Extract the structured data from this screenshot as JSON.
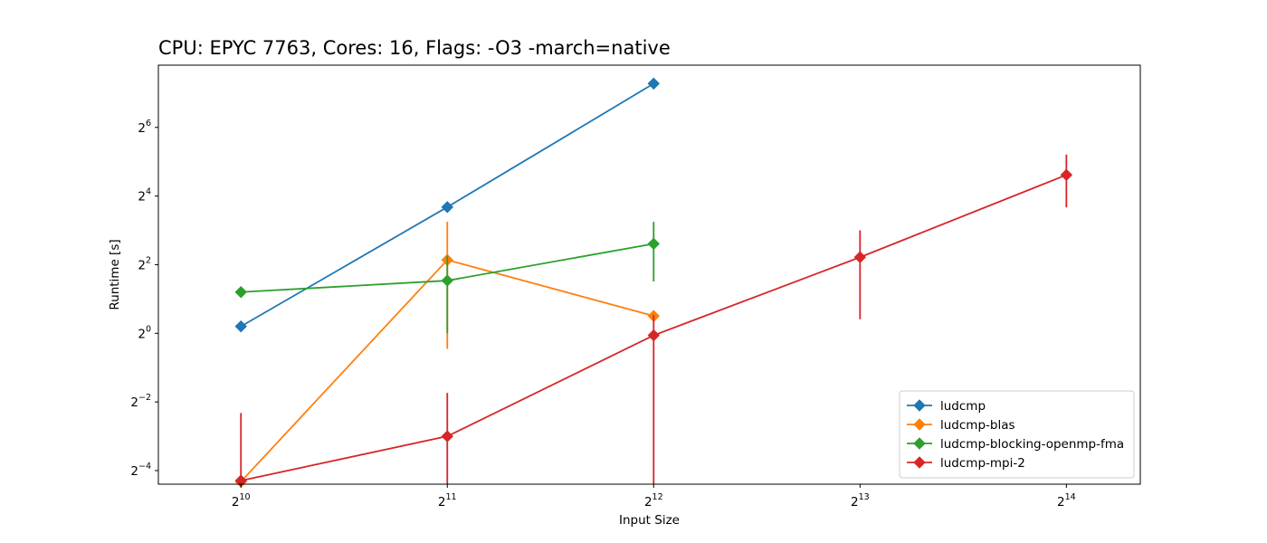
{
  "chart_data": {
    "type": "line",
    "title": "CPU: EPYC 7763, Cores: 16, Flags: -O3 -march=native",
    "xlabel": "Input Size",
    "ylabel": "Runtime [s]",
    "xscale": "log2",
    "yscale": "log2",
    "x_ticks": [
      1024,
      2048,
      4096,
      8192,
      16384
    ],
    "x_tick_labels": [
      {
        "base": "2",
        "exp": "10"
      },
      {
        "base": "2",
        "exp": "11"
      },
      {
        "base": "2",
        "exp": "12"
      },
      {
        "base": "2",
        "exp": "13"
      },
      {
        "base": "2",
        "exp": "14"
      }
    ],
    "y_ticks": [
      0.0625,
      0.25,
      1,
      4,
      16,
      64
    ],
    "y_tick_labels": [
      {
        "base": "2",
        "exp": "−4"
      },
      {
        "base": "2",
        "exp": "−2"
      },
      {
        "base": "2",
        "exp": "0"
      },
      {
        "base": "2",
        "exp": "2"
      },
      {
        "base": "2",
        "exp": "4"
      },
      {
        "base": "2",
        "exp": "6"
      }
    ],
    "xlim": [
      776,
      21000
    ],
    "ylim": [
      0.0475,
      225
    ],
    "grid": false,
    "legend_position": "lower-right",
    "marker": "diamond",
    "series": [
      {
        "name": "ludcmp",
        "color": "#1f77b4",
        "points": [
          {
            "x": 1024,
            "y": 1.15
          },
          {
            "x": 2048,
            "y": 12.8
          },
          {
            "x": 4096,
            "y": 155
          }
        ]
      },
      {
        "name": "ludcmp-blas",
        "color": "#ff7f0e",
        "points": [
          {
            "x": 1024,
            "y": 0.05
          },
          {
            "x": 2048,
            "y": 4.4,
            "err_low": 0.73,
            "err_high": 9.5
          },
          {
            "x": 4096,
            "y": 1.42,
            "err_low": 1.31,
            "err_high": 1.55
          }
        ]
      },
      {
        "name": "ludcmp-blocking-openmp-fma",
        "color": "#2ca02c",
        "points": [
          {
            "x": 1024,
            "y": 2.3
          },
          {
            "x": 2048,
            "y": 2.9,
            "err_low": 1.0,
            "err_high": 4.8
          },
          {
            "x": 4096,
            "y": 6.1,
            "err_low": 2.85,
            "err_high": 9.5
          }
        ]
      },
      {
        "name": "ludcmp-mpi-2",
        "color": "#d62728",
        "points": [
          {
            "x": 1024,
            "y": 0.051,
            "err_low": 0.03,
            "err_high": 0.2
          },
          {
            "x": 2048,
            "y": 0.125,
            "err_low": 0.03,
            "err_high": 0.3
          },
          {
            "x": 4096,
            "y": 0.96,
            "err_low": 0.03,
            "err_high": 1.45
          },
          {
            "x": 8192,
            "y": 4.65,
            "err_low": 1.33,
            "err_high": 8.0
          },
          {
            "x": 16384,
            "y": 24.5,
            "err_low": 12.7,
            "err_high": 37.0
          }
        ]
      }
    ]
  }
}
